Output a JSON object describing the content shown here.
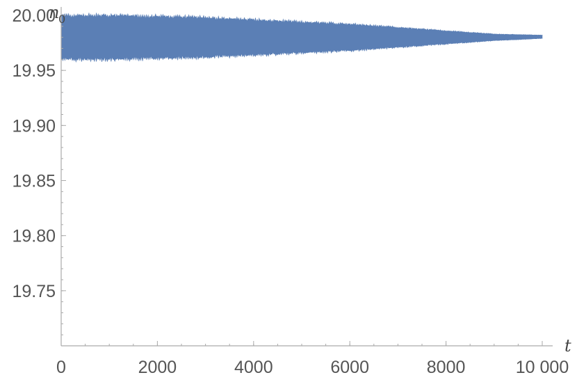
{
  "chart_data": {
    "type": "area",
    "title": "",
    "xlabel": "t",
    "ylabel": "n",
    "ylabel_subscript": "0",
    "xlim": [
      0,
      10000
    ],
    "ylim": [
      19.7,
      20.0
    ],
    "x_ticks": [
      0,
      2000,
      4000,
      6000,
      8000,
      10000
    ],
    "x_tick_labels": [
      "0",
      "2000",
      "4000",
      "6000",
      "8000",
      "10 000"
    ],
    "y_ticks": [
      19.75,
      19.8,
      19.85,
      19.9,
      19.95,
      20.0
    ],
    "y_tick_labels": [
      "19.75",
      "19.80",
      "19.85",
      "19.90",
      "19.95",
      "20.00"
    ],
    "grid": false,
    "series": [
      {
        "color": "#5b7fb5",
        "x": [
          0,
          1000,
          2000,
          3000,
          4000,
          5000,
          6000,
          7000,
          8000,
          9000,
          10000
        ],
        "upper": [
          20.0,
          20.0,
          19.999,
          19.998,
          19.996,
          19.994,
          19.992,
          19.989,
          19.986,
          19.983,
          19.982
        ],
        "lower": [
          19.96,
          19.96,
          19.961,
          19.962,
          19.964,
          19.966,
          19.968,
          19.971,
          19.974,
          19.977,
          19.979
        ]
      }
    ]
  }
}
